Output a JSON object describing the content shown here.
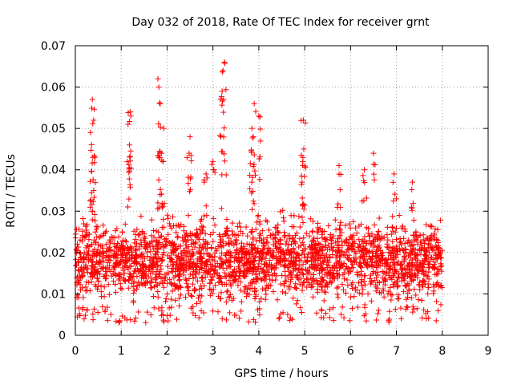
{
  "chart_data": {
    "type": "scatter",
    "title": "Day 032 of 2018, Rate Of TEC Index for receiver grnt",
    "xlabel": "GPS time / hours",
    "ylabel": "ROTI / TECUs",
    "xlim": [
      0,
      9
    ],
    "ylim": [
      0,
      0.07
    ],
    "x_ticks": [
      0,
      1,
      2,
      3,
      4,
      5,
      6,
      7,
      8,
      9
    ],
    "y_ticks": [
      0,
      0.01,
      0.02,
      0.03,
      0.04,
      0.05,
      0.06,
      0.07
    ],
    "x_tick_labels": [
      "0",
      "1",
      "2",
      "3",
      "4",
      "5",
      "6",
      "7",
      "8",
      "9"
    ],
    "y_tick_labels": [
      "0",
      "0.01",
      "0.02",
      "0.03",
      "0.04",
      "0.05",
      "0.06",
      "0.07"
    ],
    "grid": true,
    "marker": "+",
    "color": "#ff0000",
    "data_span_hours": [
      0,
      8
    ],
    "base_band": [
      0.005,
      0.03
    ],
    "peaks": [
      {
        "x": 0.37,
        "y": 0.057
      },
      {
        "x": 0.4,
        "y": 0.052
      },
      {
        "x": 0.33,
        "y": 0.049
      },
      {
        "x": 0.38,
        "y": 0.043
      },
      {
        "x": 1.2,
        "y": 0.054
      },
      {
        "x": 1.15,
        "y": 0.051
      },
      {
        "x": 1.18,
        "y": 0.046
      },
      {
        "x": 1.8,
        "y": 0.062
      },
      {
        "x": 1.82,
        "y": 0.06
      },
      {
        "x": 1.85,
        "y": 0.056
      },
      {
        "x": 1.93,
        "y": 0.05
      },
      {
        "x": 1.88,
        "y": 0.044
      },
      {
        "x": 2.5,
        "y": 0.048
      },
      {
        "x": 2.48,
        "y": 0.044
      },
      {
        "x": 3.25,
        "y": 0.066
      },
      {
        "x": 3.22,
        "y": 0.064
      },
      {
        "x": 3.2,
        "y": 0.059
      },
      {
        "x": 3.23,
        "y": 0.057
      },
      {
        "x": 3.9,
        "y": 0.056
      },
      {
        "x": 4.0,
        "y": 0.053
      },
      {
        "x": 3.85,
        "y": 0.05
      },
      {
        "x": 3.88,
        "y": 0.048
      },
      {
        "x": 4.97,
        "y": 0.052
      },
      {
        "x": 4.98,
        "y": 0.045
      },
      {
        "x": 4.96,
        "y": 0.042
      },
      {
        "x": 6.5,
        "y": 0.044
      },
      {
        "x": 5.75,
        "y": 0.041
      },
      {
        "x": 6.3,
        "y": 0.04
      },
      {
        "x": 6.95,
        "y": 0.039
      },
      {
        "x": 7.35,
        "y": 0.037
      },
      {
        "x": 3.0,
        "y": 0.042
      },
      {
        "x": 2.85,
        "y": 0.039
      }
    ]
  }
}
